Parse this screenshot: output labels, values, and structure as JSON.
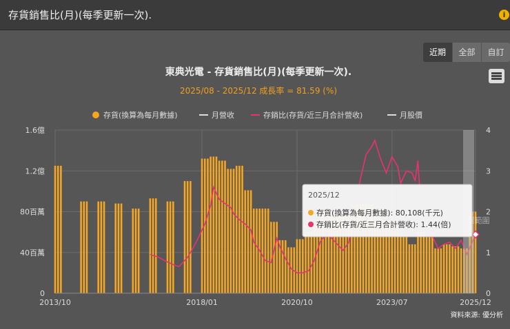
{
  "header": {
    "title": "存貨銷售比(月)(每季更新一次)."
  },
  "tabs": [
    {
      "label": "近期"
    },
    {
      "label": "全部"
    },
    {
      "label": "自訂"
    }
  ],
  "chart_data": {
    "type": "bar",
    "title": "東典光電 - 存貨銷售比(月)(每季更新一次).",
    "subtitle": "2025/08 - 2025/12 成長率 = 81.59 (%)",
    "source": "資料來源: 優分析",
    "legend": [
      {
        "name": "存貨(換算為每月數據)",
        "color": "#f5a623"
      },
      {
        "name": "月營收",
        "color": "#dddddd"
      },
      {
        "name": "存銷比(存貨/近三月合計營收)",
        "color": "#e8336d"
      },
      {
        "name": "月股價",
        "color": "#dddddd"
      }
    ],
    "y_left_ticks": [
      "0",
      "40百萬",
      "80百萬",
      "1.2億",
      "1.6億"
    ],
    "y_left_range": [
      0,
      160
    ],
    "y_right_ticks": [
      "0",
      "1",
      "2",
      "3",
      "4"
    ],
    "y_right_range": [
      0,
      4
    ],
    "x_ticks": [
      "2013/10",
      "2018/01",
      "2020/10",
      "2023/07",
      "2025/12"
    ],
    "x_range": [
      "2013-10",
      "2025-12"
    ],
    "inventory_series": {
      "name": "存貨(換算為每月數據)",
      "unit": "百萬",
      "points": [
        [
          "2013-10",
          125
        ],
        [
          "2013-11",
          125
        ],
        [
          "2013-12",
          125
        ],
        [
          "2014-07",
          90
        ],
        [
          "2014-08",
          90
        ],
        [
          "2014-09",
          90
        ],
        [
          "2015-01",
          90
        ],
        [
          "2015-02",
          90
        ],
        [
          "2015-03",
          90
        ],
        [
          "2015-07",
          88
        ],
        [
          "2015-08",
          88
        ],
        [
          "2015-09",
          88
        ],
        [
          "2016-01",
          83
        ],
        [
          "2016-02",
          83
        ],
        [
          "2016-03",
          83
        ],
        [
          "2016-07",
          93
        ],
        [
          "2016-08",
          93
        ],
        [
          "2016-09",
          93
        ],
        [
          "2017-01",
          90
        ],
        [
          "2017-02",
          90
        ],
        [
          "2017-03",
          90
        ],
        [
          "2017-07",
          110
        ],
        [
          "2017-08",
          110
        ],
        [
          "2017-09",
          110
        ],
        [
          "2018-01",
          132
        ],
        [
          "2018-02",
          132
        ],
        [
          "2018-03",
          132
        ],
        [
          "2018-04",
          134
        ],
        [
          "2018-05",
          134
        ],
        [
          "2018-06",
          134
        ],
        [
          "2018-07",
          130
        ],
        [
          "2018-08",
          130
        ],
        [
          "2018-09",
          130
        ],
        [
          "2018-10",
          122
        ],
        [
          "2018-11",
          122
        ],
        [
          "2018-12",
          122
        ],
        [
          "2019-01",
          125
        ],
        [
          "2019-02",
          125
        ],
        [
          "2019-03",
          125
        ],
        [
          "2019-04",
          101
        ],
        [
          "2019-05",
          101
        ],
        [
          "2019-06",
          101
        ],
        [
          "2019-07",
          83
        ],
        [
          "2019-08",
          83
        ],
        [
          "2019-09",
          83
        ],
        [
          "2019-10",
          83
        ],
        [
          "2019-11",
          83
        ],
        [
          "2019-12",
          83
        ],
        [
          "2020-01",
          70
        ],
        [
          "2020-02",
          70
        ],
        [
          "2020-03",
          70
        ],
        [
          "2020-04",
          52
        ],
        [
          "2020-05",
          52
        ],
        [
          "2020-06",
          52
        ],
        [
          "2020-07",
          45
        ],
        [
          "2020-08",
          45
        ],
        [
          "2020-09",
          45
        ],
        [
          "2020-10",
          53
        ],
        [
          "2020-11",
          53
        ],
        [
          "2020-12",
          53
        ],
        [
          "2021-01",
          60
        ],
        [
          "2021-02",
          60
        ],
        [
          "2021-03",
          60
        ],
        [
          "2021-04",
          66
        ],
        [
          "2021-05",
          66
        ],
        [
          "2021-06",
          66
        ],
        [
          "2021-07",
          80
        ],
        [
          "2021-08",
          80
        ],
        [
          "2021-09",
          80
        ],
        [
          "2021-10",
          80
        ],
        [
          "2021-11",
          80
        ],
        [
          "2021-12",
          80
        ],
        [
          "2022-01",
          80
        ],
        [
          "2022-02",
          80
        ],
        [
          "2022-03",
          80
        ],
        [
          "2022-04",
          80
        ],
        [
          "2022-05",
          80
        ],
        [
          "2022-06",
          80
        ],
        [
          "2022-07",
          87
        ],
        [
          "2022-08",
          87
        ],
        [
          "2022-09",
          87
        ],
        [
          "2022-10",
          87
        ],
        [
          "2022-11",
          87
        ],
        [
          "2022-12",
          87
        ],
        [
          "2023-01",
          80
        ],
        [
          "2023-02",
          80
        ],
        [
          "2023-03",
          80
        ],
        [
          "2023-04",
          72
        ],
        [
          "2023-05",
          72
        ],
        [
          "2023-06",
          72
        ],
        [
          "2023-07",
          65
        ],
        [
          "2023-08",
          65
        ],
        [
          "2023-09",
          65
        ],
        [
          "2023-10",
          57
        ],
        [
          "2023-11",
          57
        ],
        [
          "2023-12",
          57
        ],
        [
          "2024-01",
          48
        ],
        [
          "2024-02",
          48
        ],
        [
          "2024-03",
          48
        ],
        [
          "2024-04",
          60
        ],
        [
          "2024-05",
          60
        ],
        [
          "2024-06",
          60
        ],
        [
          "2024-07",
          55
        ],
        [
          "2024-08",
          55
        ],
        [
          "2024-09",
          55
        ],
        [
          "2024-10",
          44
        ],
        [
          "2024-11",
          44
        ],
        [
          "2024-12",
          44
        ],
        [
          "2025-01",
          48
        ],
        [
          "2025-02",
          48
        ],
        [
          "2025-03",
          48
        ],
        [
          "2025-04",
          46
        ],
        [
          "2025-05",
          46
        ],
        [
          "2025-06",
          46
        ],
        [
          "2025-07",
          44
        ],
        [
          "2025-08",
          44
        ],
        [
          "2025-09",
          44
        ],
        [
          "2025-10",
          80
        ],
        [
          "2025-11",
          80
        ],
        [
          "2025-12",
          80
        ]
      ]
    },
    "ratio_series": {
      "name": "存銷比(存貨/近三月合計營收)",
      "unit": "倍",
      "points": [
        [
          "2016-07",
          0.95
        ],
        [
          "2016-10",
          0.88
        ],
        [
          "2016-12",
          0.8
        ],
        [
          "2017-03",
          0.7
        ],
        [
          "2017-05",
          0.65
        ],
        [
          "2017-08",
          0.88
        ],
        [
          "2017-11",
          1.25
        ],
        [
          "2018-02",
          1.7
        ],
        [
          "2018-04",
          2.15
        ],
        [
          "2018-05",
          2.6
        ],
        [
          "2018-07",
          2.3
        ],
        [
          "2018-09",
          2.2
        ],
        [
          "2018-11",
          2.1
        ],
        [
          "2018-12",
          1.95
        ],
        [
          "2019-02",
          1.8
        ],
        [
          "2019-04",
          1.7
        ],
        [
          "2019-06",
          1.55
        ],
        [
          "2019-07",
          1.25
        ],
        [
          "2019-09",
          1.05
        ],
        [
          "2019-11",
          0.8
        ],
        [
          "2020-01",
          0.75
        ],
        [
          "2020-03",
          1.35
        ],
        [
          "2020-04",
          1.15
        ],
        [
          "2020-06",
          0.85
        ],
        [
          "2020-08",
          0.6
        ],
        [
          "2020-10",
          0.5
        ],
        [
          "2020-12",
          0.5
        ],
        [
          "2021-02",
          0.55
        ],
        [
          "2021-04",
          0.8
        ],
        [
          "2021-06",
          1.25
        ],
        [
          "2021-08",
          1.45
        ],
        [
          "2021-10",
          1.35
        ],
        [
          "2021-12",
          1.2
        ],
        [
          "2022-02",
          1.05
        ],
        [
          "2022-04",
          1.25
        ],
        [
          "2022-06",
          2.1
        ],
        [
          "2022-08",
          2.8
        ],
        [
          "2022-10",
          3.4
        ],
        [
          "2022-12",
          3.6
        ],
        [
          "2023-01",
          3.75
        ],
        [
          "2023-03",
          3.3
        ],
        [
          "2023-05",
          2.95
        ],
        [
          "2023-07",
          3.35
        ],
        [
          "2023-09",
          3.1
        ],
        [
          "2023-10",
          2.7
        ],
        [
          "2023-12",
          3.0
        ],
        [
          "2024-02",
          2.95
        ],
        [
          "2024-03",
          2.75
        ],
        [
          "2024-04",
          3.25
        ],
        [
          "2024-05",
          2.1
        ],
        [
          "2024-07",
          1.7
        ],
        [
          "2024-09",
          1.4
        ],
        [
          "2024-11",
          1.1
        ],
        [
          "2025-01",
          1.2
        ],
        [
          "2025-03",
          1.25
        ],
        [
          "2025-05",
          1.1
        ],
        [
          "2025-07",
          1.3
        ],
        [
          "2025-09",
          0.95
        ],
        [
          "2025-12",
          1.44
        ]
      ]
    },
    "tooltip": {
      "title": "2025/12",
      "rows": [
        {
          "text": "存貨(換算為每月數據): 80,108(千元)",
          "color": "#f5a623"
        },
        {
          "text": "存銷比(存貨/近三月合計營收): 1.44(倍)",
          "color": "#e8336d"
        }
      ]
    },
    "range_label": "選範圍"
  },
  "colors": {
    "bar": "#f5a623",
    "ratio": "#e8336d",
    "subtitle": "#f0a020",
    "plot_bg": "#565656"
  }
}
